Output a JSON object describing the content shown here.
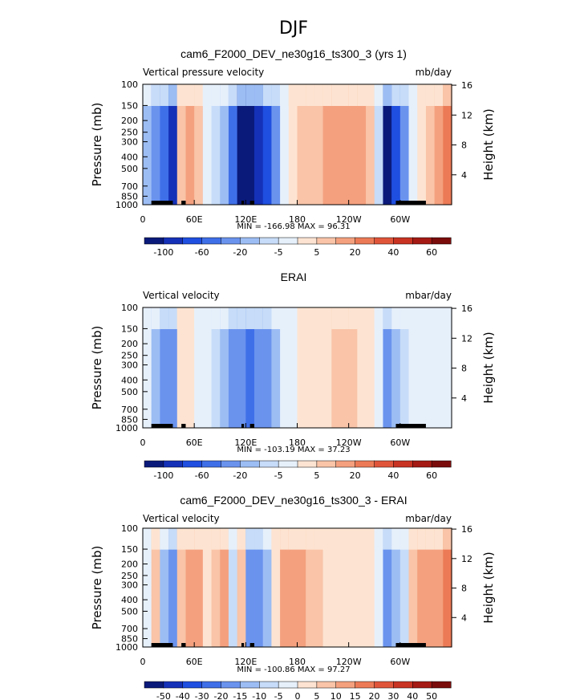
{
  "figure_title": "DJF",
  "chart_data": [
    {
      "type": "heatmap",
      "title": "cam6_F2000_DEV_ne30g16_ts300_3 (yrs 1)",
      "left_label": "Vertical pressure velocity",
      "right_label": "mb/day",
      "ylabel": "Pressure (mb)",
      "ylabel_right": "Height (km)",
      "x_ticks": [
        "0",
        "60E",
        "120E",
        "180",
        "120W",
        "60W"
      ],
      "x_tick_values": [
        0,
        60,
        120,
        180,
        240,
        300
      ],
      "xlim": [
        0,
        360
      ],
      "y_ticks": [
        "100",
        "150",
        "200",
        "250",
        "300",
        "400",
        "500",
        "700",
        "850",
        "1000"
      ],
      "y_tick_values": [
        100,
        150,
        200,
        250,
        300,
        400,
        500,
        700,
        850,
        1000
      ],
      "ylim": [
        1000,
        100
      ],
      "y_scale": "log",
      "height_ticks": [
        "4",
        "8",
        "12",
        "16"
      ],
      "height_tick_values": [
        4,
        8,
        12,
        16
      ],
      "stats": "MIN = -166.98  MAX =  96.31",
      "colorbar_labels": [
        "-100",
        "-60",
        "-20",
        "-5",
        "5",
        "20",
        "40",
        "60"
      ],
      "colorbar_colors": [
        "#0a1a7a",
        "#1531b8",
        "#1f4fe0",
        "#3f6fe8",
        "#6a93ee",
        "#9cbdf4",
        "#c7dcf8",
        "#e6f0fb",
        "#fde4d2",
        "#f9c4a8",
        "#f4a07e",
        "#ec7a56",
        "#e0553a",
        "#c83322",
        "#a51a14",
        "#7a0c0c"
      ],
      "columns": [
        {
          "lon": 5,
          "v": -30
        },
        {
          "lon": 15,
          "v": -40
        },
        {
          "lon": 25,
          "v": -60
        },
        {
          "lon": 35,
          "v": -80
        },
        {
          "lon": 45,
          "v": 15
        },
        {
          "lon": 55,
          "v": 35
        },
        {
          "lon": 65,
          "v": 20
        },
        {
          "lon": 75,
          "v": -10
        },
        {
          "lon": 85,
          "v": -15
        },
        {
          "lon": 95,
          "v": -35
        },
        {
          "lon": 105,
          "v": -60
        },
        {
          "lon": 115,
          "v": -90
        },
        {
          "lon": 125,
          "v": -100
        },
        {
          "lon": 135,
          "v": -80
        },
        {
          "lon": 145,
          "v": -70
        },
        {
          "lon": 155,
          "v": -40
        },
        {
          "lon": 165,
          "v": -10
        },
        {
          "lon": 175,
          "v": 5
        },
        {
          "lon": 185,
          "v": 15
        },
        {
          "lon": 195,
          "v": 20
        },
        {
          "lon": 205,
          "v": 20
        },
        {
          "lon": 215,
          "v": 25
        },
        {
          "lon": 225,
          "v": 30
        },
        {
          "lon": 235,
          "v": 30
        },
        {
          "lon": 245,
          "v": 35
        },
        {
          "lon": 255,
          "v": 30
        },
        {
          "lon": 265,
          "v": 20
        },
        {
          "lon": 275,
          "v": -20
        },
        {
          "lon": 285,
          "v": -90
        },
        {
          "lon": 295,
          "v": -70
        },
        {
          "lon": 305,
          "v": -40
        },
        {
          "lon": 315,
          "v": -5
        },
        {
          "lon": 325,
          "v": 10
        },
        {
          "lon": 335,
          "v": 15
        },
        {
          "lon": 345,
          "v": 30
        },
        {
          "lon": 355,
          "v": 40
        }
      ],
      "topography": [
        [
          10,
          35
        ],
        [
          45,
          50
        ],
        [
          115,
          118
        ],
        [
          125,
          130
        ],
        [
          295,
          330
        ]
      ]
    },
    {
      "type": "heatmap",
      "title": "ERAI",
      "left_label": "Vertical velocity",
      "right_label": "mbar/day",
      "ylabel": "Pressure (mb)",
      "ylabel_right": "Height (km)",
      "x_ticks": [
        "0",
        "60E",
        "120E",
        "180",
        "120W",
        "60W"
      ],
      "x_tick_values": [
        0,
        60,
        120,
        180,
        240,
        300
      ],
      "xlim": [
        0,
        360
      ],
      "y_ticks": [
        "100",
        "150",
        "200",
        "250",
        "300",
        "400",
        "500",
        "700",
        "850",
        "1000"
      ],
      "y_tick_values": [
        100,
        150,
        200,
        250,
        300,
        400,
        500,
        700,
        850,
        1000
      ],
      "ylim": [
        1000,
        100
      ],
      "y_scale": "log",
      "height_ticks": [
        "4",
        "8",
        "12",
        "16"
      ],
      "height_tick_values": [
        4,
        8,
        12,
        16
      ],
      "stats": "MIN = -103.19  MAX =  37.23",
      "colorbar_labels": [
        "-100",
        "-60",
        "-20",
        "-5",
        "5",
        "20",
        "40",
        "60"
      ],
      "colorbar_colors": [
        "#0a1a7a",
        "#1531b8",
        "#1f4fe0",
        "#3f6fe8",
        "#6a93ee",
        "#9cbdf4",
        "#c7dcf8",
        "#e6f0fb",
        "#fde4d2",
        "#f9c4a8",
        "#f4a07e",
        "#ec7a56",
        "#e0553a",
        "#c83322",
        "#a51a14",
        "#7a0c0c"
      ],
      "columns": [
        {
          "lon": 5,
          "v": -10
        },
        {
          "lon": 15,
          "v": -30
        },
        {
          "lon": 25,
          "v": -50
        },
        {
          "lon": 35,
          "v": -40
        },
        {
          "lon": 45,
          "v": 10
        },
        {
          "lon": 55,
          "v": 10
        },
        {
          "lon": 65,
          "v": -5
        },
        {
          "lon": 75,
          "v": -10
        },
        {
          "lon": 85,
          "v": -20
        },
        {
          "lon": 95,
          "v": -30
        },
        {
          "lon": 105,
          "v": -40
        },
        {
          "lon": 115,
          "v": -50
        },
        {
          "lon": 125,
          "v": -55
        },
        {
          "lon": 135,
          "v": -50
        },
        {
          "lon": 145,
          "v": -45
        },
        {
          "lon": 155,
          "v": -30
        },
        {
          "lon": 165,
          "v": -10
        },
        {
          "lon": 175,
          "v": -3
        },
        {
          "lon": 185,
          "v": 5
        },
        {
          "lon": 195,
          "v": 8
        },
        {
          "lon": 205,
          "v": 10
        },
        {
          "lon": 215,
          "v": 10
        },
        {
          "lon": 225,
          "v": 15
        },
        {
          "lon": 235,
          "v": 15
        },
        {
          "lon": 245,
          "v": 15
        },
        {
          "lon": 255,
          "v": 12
        },
        {
          "lon": 265,
          "v": 8
        },
        {
          "lon": 275,
          "v": -10
        },
        {
          "lon": 285,
          "v": -40
        },
        {
          "lon": 295,
          "v": -35
        },
        {
          "lon": 305,
          "v": -20
        },
        {
          "lon": 315,
          "v": -8
        },
        {
          "lon": 325,
          "v": -5
        },
        {
          "lon": 335,
          "v": -3
        },
        {
          "lon": 345,
          "v": -5
        },
        {
          "lon": 355,
          "v": -3
        }
      ],
      "topography": [
        [
          10,
          35
        ],
        [
          45,
          50
        ],
        [
          115,
          118
        ],
        [
          125,
          130
        ],
        [
          295,
          330
        ]
      ]
    },
    {
      "type": "heatmap",
      "title": "cam6_F2000_DEV_ne30g16_ts300_3 - ERAI",
      "left_label": "Vertical velocity",
      "right_label": "mbar/day",
      "ylabel": "Pressure (mb)",
      "ylabel_right": "Height (km)",
      "x_ticks": [
        "0",
        "60E",
        "120E",
        "180",
        "120W",
        "60W"
      ],
      "x_tick_values": [
        0,
        60,
        120,
        180,
        240,
        300
      ],
      "xlim": [
        0,
        360
      ],
      "y_ticks": [
        "100",
        "150",
        "200",
        "250",
        "300",
        "400",
        "500",
        "700",
        "850",
        "1000"
      ],
      "y_tick_values": [
        100,
        150,
        200,
        250,
        300,
        400,
        500,
        700,
        850,
        1000
      ],
      "ylim": [
        1000,
        100
      ],
      "y_scale": "log",
      "height_ticks": [
        "4",
        "8",
        "12",
        "16"
      ],
      "height_tick_values": [
        4,
        8,
        12,
        16
      ],
      "stats": "MIN = -100.86  MAX =  97.27",
      "colorbar_labels": [
        "-50",
        "-40",
        "-30",
        "-20",
        "-15",
        "-10",
        "-5",
        "0",
        "5",
        "10",
        "15",
        "20",
        "30",
        "40",
        "50"
      ],
      "colorbar_colors": [
        "#0a1a7a",
        "#1531b8",
        "#1f4fe0",
        "#3f6fe8",
        "#6a93ee",
        "#9cbdf4",
        "#c7dcf8",
        "#e6f0fb",
        "#fde4d2",
        "#f9c4a8",
        "#f4a07e",
        "#ec7a56",
        "#e0553a",
        "#c83322",
        "#a51a14",
        "#7a0c0c"
      ],
      "columns": [
        {
          "lon": 5,
          "v": -5
        },
        {
          "lon": 15,
          "v": 20
        },
        {
          "lon": 25,
          "v": -30
        },
        {
          "lon": 35,
          "v": -40
        },
        {
          "lon": 45,
          "v": 15
        },
        {
          "lon": 55,
          "v": 25
        },
        {
          "lon": 65,
          "v": 30
        },
        {
          "lon": 75,
          "v": 10
        },
        {
          "lon": 85,
          "v": 15
        },
        {
          "lon": 95,
          "v": 25
        },
        {
          "lon": 105,
          "v": -20
        },
        {
          "lon": 115,
          "v": 20
        },
        {
          "lon": 125,
          "v": -45
        },
        {
          "lon": 135,
          "v": -50
        },
        {
          "lon": 145,
          "v": -35
        },
        {
          "lon": 155,
          "v": 10
        },
        {
          "lon": 165,
          "v": 25
        },
        {
          "lon": 175,
          "v": 35
        },
        {
          "lon": 185,
          "v": 30
        },
        {
          "lon": 195,
          "v": 20
        },
        {
          "lon": 205,
          "v": 15
        },
        {
          "lon": 215,
          "v": 12
        },
        {
          "lon": 225,
          "v": 10
        },
        {
          "lon": 235,
          "v": 8
        },
        {
          "lon": 245,
          "v": 10
        },
        {
          "lon": 255,
          "v": 10
        },
        {
          "lon": 265,
          "v": 8
        },
        {
          "lon": 275,
          "v": -5
        },
        {
          "lon": 285,
          "v": -40
        },
        {
          "lon": 295,
          "v": -30
        },
        {
          "lon": 305,
          "v": -15
        },
        {
          "lon": 315,
          "v": 15
        },
        {
          "lon": 325,
          "v": 25
        },
        {
          "lon": 335,
          "v": 30
        },
        {
          "lon": 345,
          "v": 35
        },
        {
          "lon": 355,
          "v": 40
        }
      ],
      "topography": [
        [
          10,
          35
        ],
        [
          45,
          50
        ],
        [
          115,
          118
        ],
        [
          125,
          130
        ],
        [
          295,
          330
        ]
      ]
    }
  ]
}
